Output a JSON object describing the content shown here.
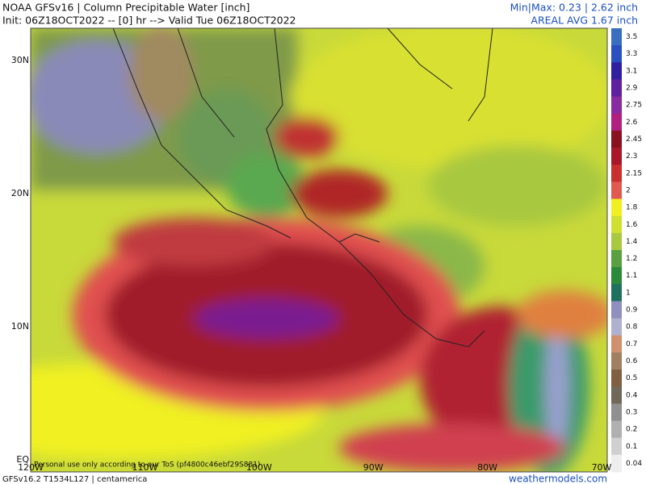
{
  "header": {
    "title": "NOAA GFSv16 | Column Precipitable Water [inch]",
    "init": "Init: 06Z18OCT2022 -- [0] hr --> Valid Tue 06Z18OCT2022",
    "minmax": "Min|Max: 0.23 | 2.62 inch",
    "areal_avg": "AREAL AVG 1.67 inch"
  },
  "map": {
    "lat_labels": [
      "30N",
      "20N",
      "10N",
      "EQ"
    ],
    "lon_labels": [
      "120W",
      "110W",
      "100W",
      "90W",
      "80W",
      "70W"
    ],
    "watermark": "Personal use only according to our ToS (pf4800c46ebf29S881)"
  },
  "colorbar": {
    "labels": [
      "3.5",
      "3.3",
      "3.1",
      "2.9",
      "2.75",
      "2.6",
      "2.45",
      "2.3",
      "2.15",
      "2",
      "1.8",
      "1.6",
      "1.4",
      "1.2",
      "1.1",
      "1",
      "0.9",
      "0.8",
      "0.7",
      "0.6",
      "0.5",
      "0.4",
      "0.3",
      "0.2",
      "0.1",
      "0.04"
    ]
  },
  "footer": {
    "model": "GFSv16.2 T1534L127 | centamerica",
    "site": "weathermodels.com"
  }
}
